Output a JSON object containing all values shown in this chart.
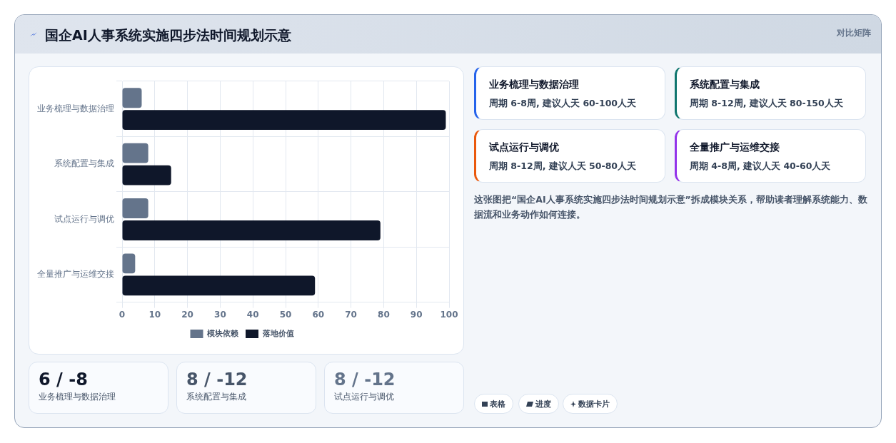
{
  "chart_data": {
    "type": "bar",
    "orientation": "horizontal",
    "title": "国企AI人事系统实施四步法时间规划示意",
    "categories": [
      "业务梳理与数据治理",
      "系统配置与集成",
      "试点运行与调优",
      "全量推广与运维交接"
    ],
    "series": [
      {
        "name": "模块依赖",
        "color": "#64748b",
        "values": [
          6,
          8,
          8,
          4
        ]
      },
      {
        "name": "落地价值",
        "color": "#0f172a",
        "values": [
          99,
          15,
          79,
          59
        ]
      }
    ],
    "xlim": [
      0,
      100
    ],
    "xticks": [
      0,
      10,
      20,
      30,
      40,
      50,
      60,
      70,
      80,
      90,
      100
    ],
    "grid": true,
    "legend": "bottom",
    "annotations": [
      "对比矩阵",
      "业务梳理与数据治理",
      "周期 6-8周, 建议人天 60-100人天",
      "系统配置与集成",
      "周期 8-12周, 建议人天 80-150人天",
      "试点运行与调优",
      "周期 8-12周, 建议人天 50-80人天",
      "全量推广与运维交接",
      "周期 4-8周, 建议人天 40-60人天",
      "这张图把“国企AI人事系统实施四步法时间规划示意”拆成模块关系，帮助读者理解系统能力、数据流和业务动作如何连接。",
      "6 / -8",
      "业务梳理与数据治理",
      "8 / -12",
      "系统配置与集成",
      "8 / -12",
      "试点运行与调优",
      "表格",
      "进度",
      "数据卡片"
    ]
  }
}
